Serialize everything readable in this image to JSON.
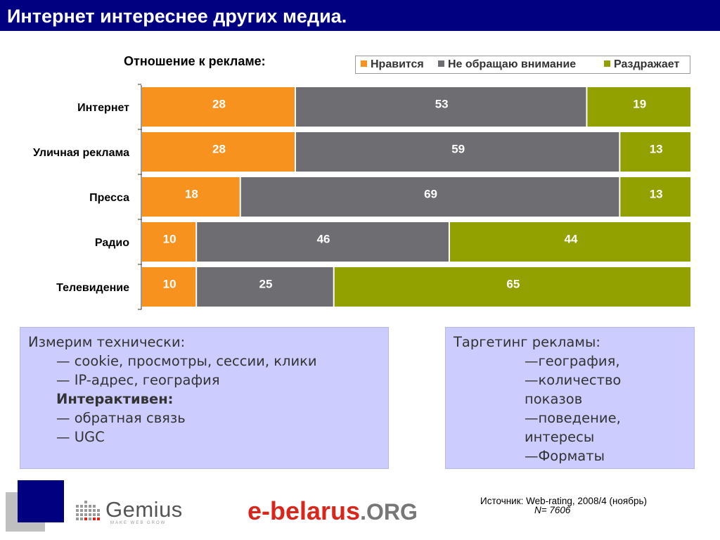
{
  "slide_title": "Интернет интереснее других медиа.",
  "colors": {
    "title_bg": "#000080",
    "like": "#F7921E",
    "ignore": "#6D6D72",
    "irritate": "#92A000"
  },
  "chart_data": {
    "type": "bar",
    "orientation": "horizontal",
    "stacked": true,
    "percent": true,
    "title": "Отношение к рекламе:",
    "categories": [
      "Интернет",
      "Уличная реклама",
      "Пресса",
      "Радио",
      "Телевидение"
    ],
    "series": [
      {
        "name": "Нравится",
        "color": "#F7921E",
        "values": [
          28,
          28,
          18,
          10,
          10
        ]
      },
      {
        "name": "Не обращаю внимание",
        "color": "#6D6D72",
        "values": [
          53,
          59,
          69,
          46,
          25
        ]
      },
      {
        "name": "Раздражает",
        "color": "#92A000",
        "values": [
          19,
          13,
          13,
          44,
          65
        ]
      }
    ],
    "legend_position": "top-right"
  },
  "left_box": {
    "heading": "Измерим технически:",
    "items": [
      "— cookie, просмотры, сессии, клики",
      "— IP-адрес, география"
    ],
    "subheading": "Интерактивен:",
    "items2": [
      "— обратная связь",
      "— UGC"
    ]
  },
  "right_box": {
    "heading": "Таргетинг рекламы:",
    "lines": [
      "—география,",
      "—количество",
      "показов",
      "—поведение,",
      "интересы",
      "—Форматы"
    ]
  },
  "footer": {
    "gemius": "Gemius",
    "gemius_sub": "MAKE WEB GROW",
    "ebelarus_main": "e-belarus",
    "ebelarus_org": ".ORG",
    "source": "Источник: Web-rating, 2008/4 (ноябрь)",
    "n": "N= 7606"
  }
}
